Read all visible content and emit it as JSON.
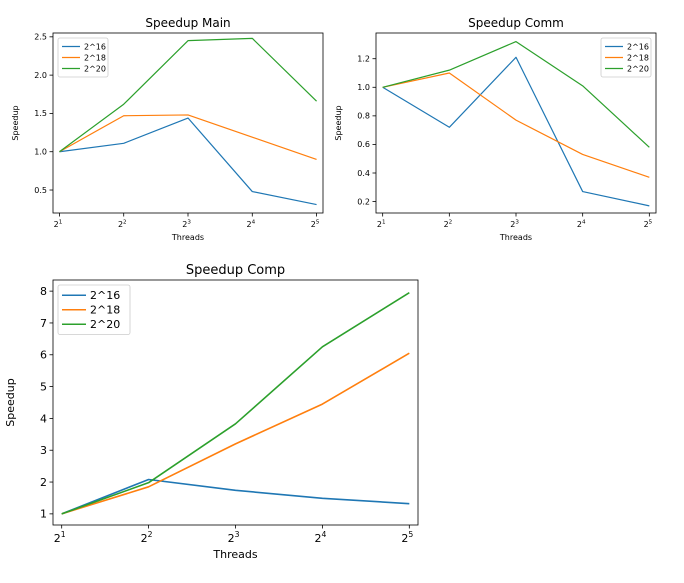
{
  "chart_data": [
    {
      "type": "line",
      "title": "Speedup Main",
      "xlabel": "Threads",
      "ylabel": "Speedup",
      "x": [
        1,
        2,
        3,
        4,
        5
      ],
      "xticks": [
        {
          "base": "2",
          "exp": "1"
        },
        {
          "base": "2",
          "exp": "2"
        },
        {
          "base": "2",
          "exp": "3"
        },
        {
          "base": "2",
          "exp": "4"
        },
        {
          "base": "2",
          "exp": "5"
        }
      ],
      "yticks": [
        0.5,
        1.0,
        1.5,
        2.0,
        2.5
      ],
      "ytick_labels": [
        "0.5",
        "1.0",
        "1.5",
        "2.0",
        "2.5"
      ],
      "ylim": [
        0.2,
        2.55
      ],
      "legend_position": "top-left",
      "series": [
        {
          "name": "2^16",
          "color": "#1f77b4",
          "values": [
            1.0,
            1.11,
            1.44,
            0.48,
            0.31
          ]
        },
        {
          "name": "2^18",
          "color": "#ff7f0e",
          "values": [
            1.0,
            1.47,
            1.48,
            1.19,
            0.9
          ]
        },
        {
          "name": "2^20",
          "color": "#2ca02c",
          "values": [
            1.0,
            1.62,
            2.45,
            2.48,
            1.66
          ]
        }
      ]
    },
    {
      "type": "line",
      "title": "Speedup Comm",
      "xlabel": "Threads",
      "ylabel": "Speedup",
      "x": [
        1,
        2,
        3,
        4,
        5
      ],
      "xticks": [
        {
          "base": "2",
          "exp": "1"
        },
        {
          "base": "2",
          "exp": "2"
        },
        {
          "base": "2",
          "exp": "3"
        },
        {
          "base": "2",
          "exp": "4"
        },
        {
          "base": "2",
          "exp": "5"
        }
      ],
      "yticks": [
        0.2,
        0.4,
        0.6,
        0.8,
        1.0,
        1.2
      ],
      "ytick_labels": [
        "0.2",
        "0.4",
        "0.6",
        "0.8",
        "1.0",
        "1.2"
      ],
      "ylim": [
        0.12,
        1.38
      ],
      "legend_position": "top-right",
      "series": [
        {
          "name": "2^16",
          "color": "#1f77b4",
          "values": [
            1.0,
            0.72,
            1.21,
            0.27,
            0.17
          ]
        },
        {
          "name": "2^18",
          "color": "#ff7f0e",
          "values": [
            1.0,
            1.1,
            0.77,
            0.53,
            0.37
          ]
        },
        {
          "name": "2^20",
          "color": "#2ca02c",
          "values": [
            1.0,
            1.12,
            1.32,
            1.01,
            0.58
          ]
        }
      ]
    },
    {
      "type": "line",
      "title": "Speedup Comp",
      "xlabel": "Threads",
      "ylabel": "Speedup",
      "x": [
        1,
        2,
        3,
        4,
        5
      ],
      "xticks": [
        {
          "base": "2",
          "exp": "1"
        },
        {
          "base": "2",
          "exp": "2"
        },
        {
          "base": "2",
          "exp": "3"
        },
        {
          "base": "2",
          "exp": "4"
        },
        {
          "base": "2",
          "exp": "5"
        }
      ],
      "yticks": [
        1,
        2,
        3,
        4,
        5,
        6,
        7,
        8
      ],
      "ytick_labels": [
        "1",
        "2",
        "3",
        "4",
        "5",
        "6",
        "7",
        "8"
      ],
      "ylim": [
        0.65,
        8.35
      ],
      "legend_position": "top-left",
      "series": [
        {
          "name": "2^16",
          "color": "#1f77b4",
          "values": [
            1.0,
            2.08,
            1.74,
            1.49,
            1.32
          ]
        },
        {
          "name": "2^18",
          "color": "#ff7f0e",
          "values": [
            1.0,
            1.85,
            3.2,
            4.45,
            6.05
          ]
        },
        {
          "name": "2^20",
          "color": "#2ca02c",
          "values": [
            1.0,
            1.98,
            3.83,
            6.25,
            7.95
          ]
        }
      ]
    }
  ]
}
